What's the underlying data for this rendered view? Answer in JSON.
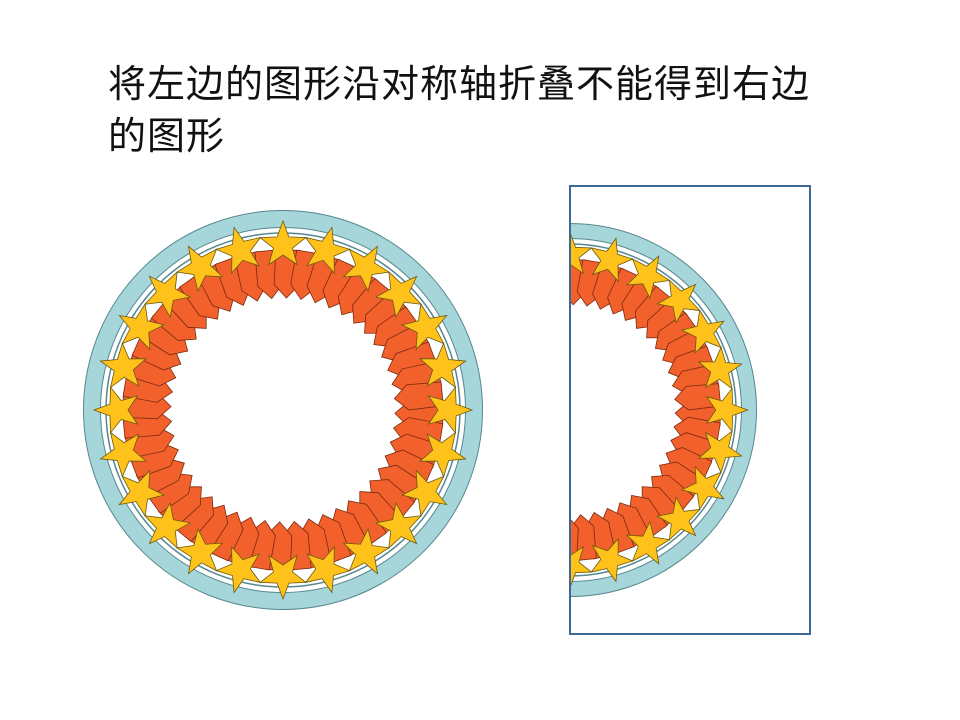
{
  "slide": {
    "title": "将左边的图形沿对称轴折叠不能得到右边的图形"
  },
  "figure": {
    "star_count": 24,
    "arrow_count": 48,
    "colors": {
      "outer_ring": "#a6d5da",
      "ring_stroke": "#55888e",
      "star_fill": "#ffc21a",
      "star_stroke": "#6a5a10",
      "arrow_fill": "#f2602c",
      "arrow_stroke": "#7a2a10",
      "frame": "#3c6896"
    }
  }
}
